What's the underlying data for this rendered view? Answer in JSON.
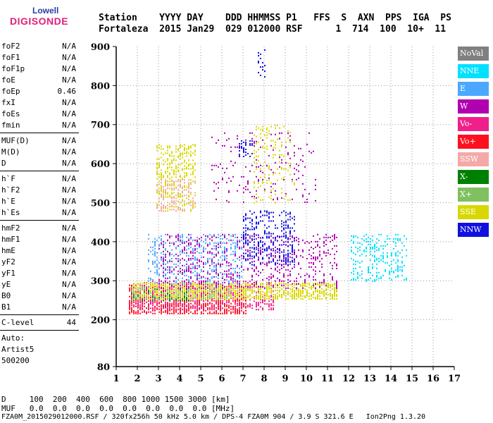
{
  "logo": {
    "line1": "Lowell",
    "line2": "DIGISONDE"
  },
  "header": {
    "line1": "Station    YYYY DAY    DDD HHMMSS P1   FFS  S  AXN  PPS  IGA  PS",
    "line2": "Fortaleza  2015 Jan29  029 012000 RSF      1  714  100  10+  11"
  },
  "params": {
    "group1": [
      {
        "name": "foF2",
        "value": "N/A"
      },
      {
        "name": "foF1",
        "value": "N/A"
      },
      {
        "name": "foF1p",
        "value": "N/A"
      },
      {
        "name": "foE",
        "value": "N/A"
      },
      {
        "name": "foEp",
        "value": "0.46"
      },
      {
        "name": "fxI",
        "value": "N/A"
      },
      {
        "name": "foEs",
        "value": "N/A"
      },
      {
        "name": "fmin",
        "value": "N/A"
      }
    ],
    "group2": [
      {
        "name": "MUF(D)",
        "value": "N/A"
      },
      {
        "name": "M(D)",
        "value": "N/A"
      },
      {
        "name": "D",
        "value": "N/A"
      }
    ],
    "group3": [
      {
        "name": "h`F",
        "value": "N/A"
      },
      {
        "name": "h`F2",
        "value": "N/A"
      },
      {
        "name": "h`E",
        "value": "N/A"
      },
      {
        "name": "h`Es",
        "value": "N/A"
      }
    ],
    "group4": [
      {
        "name": "hmF2",
        "value": "N/A"
      },
      {
        "name": "hmF1",
        "value": "N/A"
      },
      {
        "name": "hmE",
        "value": "N/A"
      },
      {
        "name": "yF2",
        "value": "N/A"
      },
      {
        "name": "yF1",
        "value": "N/A"
      },
      {
        "name": "yE",
        "value": "N/A"
      },
      {
        "name": "B0",
        "value": "N/A"
      },
      {
        "name": "B1",
        "value": "N/A"
      }
    ],
    "group5": [
      {
        "name": "C-level",
        "value": "44"
      }
    ],
    "extra": [
      "Auto:",
      "Artist5",
      "500200"
    ]
  },
  "legend": [
    {
      "label": "NoVal",
      "color": "#808080"
    },
    {
      "label": "NNE",
      "color": "#00e0ff"
    },
    {
      "label": "E",
      "color": "#4aa8ff"
    },
    {
      "label": "W",
      "color": "#b000b0"
    },
    {
      "label": "Vo-",
      "color": "#f0208a"
    },
    {
      "label": "Vo+",
      "color": "#ff1020"
    },
    {
      "label": "SSW",
      "color": "#f4a8a8"
    },
    {
      "label": "X-",
      "color": "#008000"
    },
    {
      "label": "X+",
      "color": "#80c060"
    },
    {
      "label": "SSE",
      "color": "#d8d800"
    },
    {
      "label": "NNW",
      "color": "#1010e0"
    }
  ],
  "bottom_table": {
    "row1": "D     100  200  400  600  800 1000 1500 3000 [km]",
    "row2": "MUF   0.0  0.0  0.0  0.0  0.0  0.0  0.0  0.0 [MHz]"
  },
  "footer": "FZA0M_2015029012000.RSF / 320fx256h 50 kHz 5.0 km / DPS-4 FZA0M 904 / 3.9 S 321.6 E   Ion2Png 1.3.20",
  "chart_data": {
    "type": "scatter",
    "title": "",
    "xlabel": "",
    "ylabel": "",
    "xlim": [
      1,
      17
    ],
    "ylim": [
      80,
      900
    ],
    "x_ticks": [
      1,
      2,
      3,
      4,
      5,
      6,
      7,
      8,
      9,
      10,
      11,
      12,
      13,
      14,
      15,
      16,
      17
    ],
    "y_ticks": [
      80,
      200,
      300,
      400,
      500,
      600,
      700,
      800,
      900
    ],
    "grid": true,
    "legend_position": "right",
    "clusters": [
      {
        "name": "Vo+",
        "color": "#ff1020",
        "x": [
          1.6,
          7.2
        ],
        "y": [
          215,
          290
        ],
        "density": 0.55
      },
      {
        "name": "Vo-",
        "color": "#f0208a",
        "x": [
          1.7,
          8.5
        ],
        "y": [
          225,
          300
        ],
        "density": 0.35
      },
      {
        "name": "SSE",
        "color": "#d8d800",
        "x": [
          1.8,
          11.5
        ],
        "y": [
          255,
          295
        ],
        "density": 0.6
      },
      {
        "name": "X+",
        "color": "#80c060",
        "x": [
          1.7,
          6.5
        ],
        "y": [
          255,
          285
        ],
        "density": 0.25
      },
      {
        "name": "X-",
        "color": "#008000",
        "x": [
          1.7,
          4.5
        ],
        "y": [
          250,
          280
        ],
        "density": 0.15
      },
      {
        "name": "E",
        "color": "#4aa8ff",
        "x": [
          2.5,
          7.0
        ],
        "y": [
          290,
          420
        ],
        "density": 0.25
      },
      {
        "name": "W",
        "color": "#b000b0",
        "x": [
          3.0,
          11.5
        ],
        "y": [
          280,
          420
        ],
        "density": 0.2
      },
      {
        "name": "NNE",
        "color": "#00e0ff",
        "x": [
          12.1,
          14.8
        ],
        "y": [
          300,
          420
        ],
        "density": 0.25
      },
      {
        "name": "NNW",
        "color": "#1010e0",
        "x": [
          7.0,
          9.5
        ],
        "y": [
          340,
          480
        ],
        "density": 0.3
      },
      {
        "name": "SSE",
        "color": "#d8d800",
        "x": [
          2.9,
          4.8
        ],
        "y": [
          480,
          650
        ],
        "density": 0.35
      },
      {
        "name": "SSW",
        "color": "#f4a8a8",
        "x": [
          2.9,
          4.8
        ],
        "y": [
          480,
          560
        ],
        "density": 0.25
      },
      {
        "name": "SSE",
        "color": "#d8d800",
        "x": [
          7.5,
          9.5
        ],
        "y": [
          500,
          700
        ],
        "density": 0.12
      },
      {
        "name": "NNW",
        "color": "#1010e0",
        "x": [
          6.8,
          7.5
        ],
        "y": [
          620,
          660
        ],
        "density": 0.3
      },
      {
        "name": "W",
        "color": "#b000b0",
        "x": [
          5.5,
          10.5
        ],
        "y": [
          500,
          680
        ],
        "density": 0.06
      },
      {
        "name": "NNW",
        "color": "#1010e0",
        "x": [
          7.7,
          8.1
        ],
        "y": [
          820,
          900
        ],
        "density": 0.1
      }
    ]
  }
}
